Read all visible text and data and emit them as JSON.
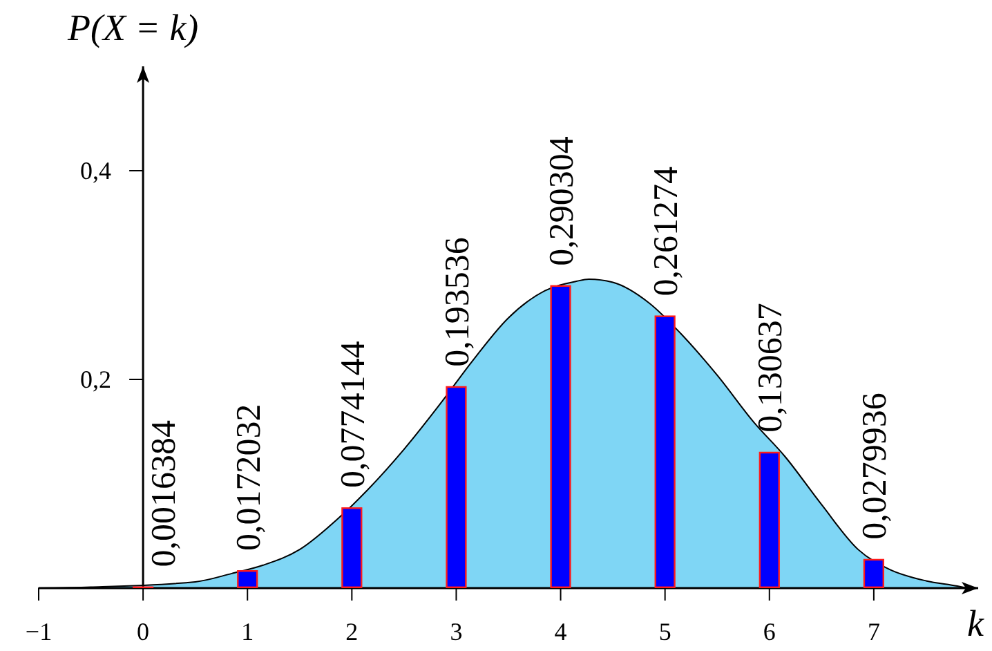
{
  "chart_data": {
    "type": "bar",
    "xlabel": "k",
    "ylabel": "P(X = k)",
    "xlim": [
      -1,
      8
    ],
    "ylim": [
      0,
      0.5
    ],
    "xticks": [
      {
        "value": -1,
        "label": "−1"
      },
      0,
      1,
      2,
      3,
      4,
      5,
      6,
      7
    ],
    "yticks": [
      {
        "value": 0.2,
        "label": "0,2"
      },
      {
        "value": 0.4,
        "label": "0,4"
      }
    ],
    "x": [
      0,
      1,
      2,
      3,
      4,
      5,
      6,
      7
    ],
    "series": [
      {
        "type": "area",
        "color": "#7fd6f5",
        "x": [
          -1,
          -0.5,
          0.5,
          0.85,
          1.15,
          1.5,
          1.85,
          2.15,
          2.5,
          2.85,
          3.15,
          3.5,
          3.85,
          4.15,
          4.27,
          4.5,
          4.85,
          5.15,
          5.5,
          5.85,
          6.15,
          6.5,
          6.85,
          7.15,
          7.5,
          7.8,
          7.9
        ],
        "values": [
          0,
          0.001,
          0.006,
          0.014,
          0.022,
          0.037,
          0.065,
          0.094,
          0.133,
          0.177,
          0.217,
          0.259,
          0.285,
          0.294,
          0.296,
          0.293,
          0.273,
          0.244,
          0.204,
          0.159,
          0.126,
          0.08,
          0.037,
          0.018,
          0.007,
          0.002,
          0
        ]
      },
      {
        "color": "#0000ff",
        "values": [
          0.0016384,
          0.0172032,
          0.0774144,
          0.193536,
          0.290304,
          0.261274,
          0.130637,
          0.0279936
        ],
        "value_labels": [
          "0,0016384",
          "0,0172032",
          "0,0774144",
          "0,193536",
          "0,290304",
          "0,261274",
          "0,130637",
          "0,0279936"
        ]
      }
    ]
  }
}
